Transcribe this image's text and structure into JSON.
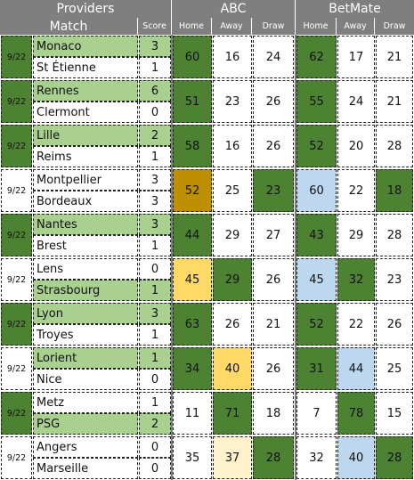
{
  "headers": {
    "providers": "Providers",
    "match": "Match",
    "score": "Score",
    "abc": "ABC",
    "betmate": "BetMate",
    "home": "Home",
    "away": "Away",
    "draw": "Draw"
  },
  "legend_colors": {
    "header_bg": "#7f7f7f",
    "winner_fill": "#a9d08e",
    "correct_dark_green": "#4e8233",
    "gold": "#bf8f00",
    "yellow": "#ffd966",
    "cream": "#fff2cc",
    "blue": "#bdd7ee"
  },
  "matches": [
    {
      "date": "9/22",
      "date_win": true,
      "team1": "Monaco",
      "score1": "3",
      "team1_win": true,
      "team2": "St Étienne",
      "score2": "1",
      "team2_win": false,
      "abc": [
        "60",
        "16",
        "24"
      ],
      "abc_hl": [
        "green",
        "",
        ""
      ],
      "betmate": [
        "62",
        "17",
        "21"
      ],
      "betmate_hl": [
        "green",
        "",
        ""
      ]
    },
    {
      "date": "9/22",
      "date_win": true,
      "team1": "Rennes",
      "score1": "6",
      "team1_win": true,
      "team2": "Clermont",
      "score2": "0",
      "team2_win": false,
      "abc": [
        "51",
        "23",
        "26"
      ],
      "abc_hl": [
        "green",
        "",
        ""
      ],
      "betmate": [
        "55",
        "24",
        "21"
      ],
      "betmate_hl": [
        "green",
        "",
        ""
      ]
    },
    {
      "date": "9/22",
      "date_win": true,
      "team1": "Lille",
      "score1": "2",
      "team1_win": true,
      "team2": "Reims",
      "score2": "1",
      "team2_win": false,
      "abc": [
        "58",
        "16",
        "26"
      ],
      "abc_hl": [
        "green",
        "",
        ""
      ],
      "betmate": [
        "52",
        "20",
        "28"
      ],
      "betmate_hl": [
        "green",
        "",
        ""
      ]
    },
    {
      "date": "9/22",
      "date_win": false,
      "team1": "Montpellier",
      "score1": "3",
      "team1_win": false,
      "team2": "Bordeaux",
      "score2": "3",
      "team2_win": false,
      "abc": [
        "52",
        "25",
        "23"
      ],
      "abc_hl": [
        "gold",
        "",
        "green"
      ],
      "betmate": [
        "60",
        "22",
        "18"
      ],
      "betmate_hl": [
        "blue",
        "",
        "green"
      ]
    },
    {
      "date": "9/22",
      "date_win": true,
      "team1": "Nantes",
      "score1": "3",
      "team1_win": true,
      "team2": "Brest",
      "score2": "1",
      "team2_win": false,
      "abc": [
        "44",
        "29",
        "27"
      ],
      "abc_hl": [
        "green",
        "",
        ""
      ],
      "betmate": [
        "43",
        "29",
        "28"
      ],
      "betmate_hl": [
        "green",
        "",
        ""
      ]
    },
    {
      "date": "9/22",
      "date_win": false,
      "team1": "Lens",
      "score1": "0",
      "team1_win": false,
      "team2": "Strasbourg",
      "score2": "1",
      "team2_win": true,
      "abc": [
        "45",
        "29",
        "26"
      ],
      "abc_hl": [
        "yellow",
        "green",
        ""
      ],
      "betmate": [
        "45",
        "32",
        "23"
      ],
      "betmate_hl": [
        "blue",
        "green",
        ""
      ]
    },
    {
      "date": "9/22",
      "date_win": true,
      "team1": "Lyon",
      "score1": "3",
      "team1_win": true,
      "team2": "Troyes",
      "score2": "1",
      "team2_win": false,
      "abc": [
        "63",
        "26",
        "21"
      ],
      "abc_hl": [
        "green",
        "",
        ""
      ],
      "betmate": [
        "52",
        "22",
        "26"
      ],
      "betmate_hl": [
        "green",
        "",
        ""
      ]
    },
    {
      "date": "9/22",
      "date_win": false,
      "team1": "Lorient",
      "score1": "1",
      "team1_win": true,
      "team2": "Nice",
      "score2": "0",
      "team2_win": false,
      "abc": [
        "34",
        "40",
        "26"
      ],
      "abc_hl": [
        "green",
        "yellow",
        ""
      ],
      "betmate": [
        "31",
        "44",
        "25"
      ],
      "betmate_hl": [
        "green",
        "blue",
        ""
      ]
    },
    {
      "date": "9/22",
      "date_win": true,
      "team1": "Metz",
      "score1": "1",
      "team1_win": false,
      "team2": "PSG",
      "score2": "2",
      "team2_win": true,
      "abc": [
        "11",
        "71",
        "18"
      ],
      "abc_hl": [
        "",
        "green",
        ""
      ],
      "betmate": [
        "7",
        "78",
        "15"
      ],
      "betmate_hl": [
        "",
        "green",
        ""
      ]
    },
    {
      "date": "9/22",
      "date_win": false,
      "team1": "Angers",
      "score1": "0",
      "team1_win": false,
      "team2": "Marseille",
      "score2": "0",
      "team2_win": false,
      "abc": [
        "35",
        "37",
        "28"
      ],
      "abc_hl": [
        "",
        "cream",
        "green"
      ],
      "betmate": [
        "32",
        "40",
        "28"
      ],
      "betmate_hl": [
        "",
        "blue",
        "green"
      ]
    }
  ]
}
